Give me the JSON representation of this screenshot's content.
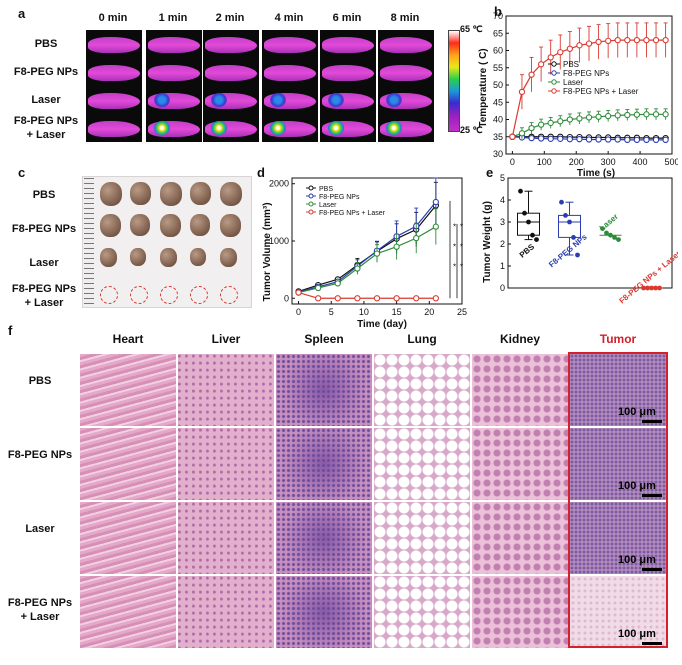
{
  "panels": {
    "a": "a",
    "b": "b",
    "c": "c",
    "d": "d",
    "e": "e",
    "f": "f"
  },
  "panel_a": {
    "time_labels": [
      "0 min",
      "1 min",
      "2 min",
      "4 min",
      "6 min",
      "8 min"
    ],
    "row_labels": [
      "PBS",
      "F8-PEG NPs",
      "Laser",
      "F8-PEG NPs\n+ Laser"
    ],
    "colorbar_max": "65 ℃",
    "colorbar_min": "25 ℃"
  },
  "panel_c": {
    "row_labels": [
      "PBS",
      "F8-PEG NPs",
      "Laser",
      "F8-PEG NPs\n+ Laser"
    ]
  },
  "panel_f": {
    "column_labels": [
      "Heart",
      "Liver",
      "Spleen",
      "Lung",
      "Kidney",
      "Tumor"
    ],
    "row_labels": [
      "PBS",
      "F8-PEG NPs",
      "Laser",
      "F8-PEG NPs\n+ Laser"
    ],
    "scale_label": "100 μm",
    "tumor_color": "#d4202a"
  },
  "chart_data": [
    {
      "id": "b",
      "type": "line",
      "xlabel": "Time (s)",
      "ylabel": "Temperature ( C)",
      "xlim": [
        -20,
        500
      ],
      "ylim": [
        30,
        70
      ],
      "xticks": [
        0,
        100,
        200,
        300,
        400,
        500
      ],
      "yticks": [
        30,
        35,
        40,
        45,
        50,
        55,
        60,
        65,
        70
      ],
      "legend": "top-right",
      "x": [
        0,
        30,
        60,
        90,
        120,
        150,
        180,
        210,
        240,
        270,
        300,
        330,
        360,
        390,
        420,
        450,
        480
      ],
      "series": [
        {
          "name": "PBS",
          "color": "#111111",
          "values": [
            35,
            35,
            35,
            35,
            35,
            35,
            34.9,
            34.9,
            34.8,
            34.8,
            34.8,
            34.7,
            34.7,
            34.7,
            34.6,
            34.6,
            34.6
          ]
        },
        {
          "name": "F8-PEG NPs",
          "color": "#2b3db0",
          "values": [
            35,
            34.8,
            34.6,
            34.5,
            34.4,
            34.4,
            34.3,
            34.3,
            34.2,
            34.2,
            34.2,
            34.2,
            34.1,
            34.1,
            34.1,
            34.1,
            34.1
          ]
        },
        {
          "name": "Laser",
          "color": "#2e8b3a",
          "values": [
            35,
            36,
            37.5,
            38.5,
            39,
            39.5,
            40,
            40.3,
            40.6,
            40.8,
            41,
            41.2,
            41.3,
            41.4,
            41.5,
            41.5,
            41.5
          ]
        },
        {
          "name": "F8-PEG NPs + Laser",
          "color": "#d93a30",
          "values": [
            35,
            48,
            53,
            56,
            58,
            59.5,
            60.5,
            61.5,
            62,
            62.5,
            62.8,
            63,
            63,
            63,
            63,
            63,
            63
          ]
        }
      ]
    },
    {
      "id": "d",
      "type": "line",
      "xlabel": "Time (day)",
      "ylabel": "Tumor Volume (mm³)",
      "xlim": [
        -1,
        25
      ],
      "ylim": [
        -100,
        2100
      ],
      "xticks": [
        0,
        5,
        10,
        15,
        20,
        25
      ],
      "yticks": [
        0,
        1000,
        2000
      ],
      "legend": "top-left",
      "x": [
        0,
        3,
        6,
        9,
        12,
        15,
        18,
        21
      ],
      "series": [
        {
          "name": "PBS",
          "color": "#111111",
          "values": [
            120,
            230,
            330,
            580,
            820,
            1040,
            1200,
            1620
          ]
        },
        {
          "name": "F8-PEG NPs",
          "color": "#2b3db0",
          "values": [
            110,
            200,
            290,
            560,
            830,
            1080,
            1260,
            1680
          ]
        },
        {
          "name": "Laser",
          "color": "#2e8b3a",
          "values": [
            100,
            180,
            260,
            520,
            780,
            900,
            1050,
            1250
          ]
        },
        {
          "name": "F8-PEG NPs + Laser",
          "color": "#d93a30",
          "values": [
            100,
            0,
            0,
            0,
            0,
            0,
            0,
            0
          ]
        }
      ],
      "annotations": [
        "*",
        "*",
        "*",
        "*",
        "*",
        "*"
      ]
    },
    {
      "id": "e",
      "type": "scatter",
      "ylabel": "Tumor Weight (g)",
      "ylim": [
        0,
        5
      ],
      "yticks": [
        0,
        1,
        2,
        3,
        4,
        5
      ],
      "categories": [
        "PBS",
        "F8-PEG NPs",
        "Laser",
        "F8-PEG NPs + Laser"
      ],
      "colors": [
        "#111111",
        "#2b3db0",
        "#2e8b3a",
        "#d93a30"
      ],
      "points": [
        [
          4.4,
          3.4,
          3.0,
          2.4,
          2.2
        ],
        [
          3.9,
          3.3,
          3.0,
          2.3,
          1.5
        ],
        [
          2.7,
          2.5,
          2.4,
          2.3,
          2.2
        ],
        [
          0,
          0,
          0,
          0,
          0
        ]
      ]
    }
  ]
}
